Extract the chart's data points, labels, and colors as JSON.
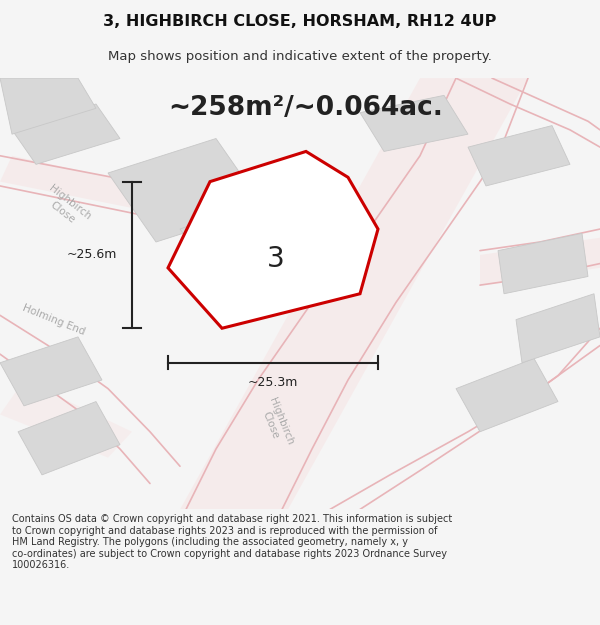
{
  "title_line1": "3, HIGHBIRCH CLOSE, HORSHAM, RH12 4UP",
  "title_line2": "Map shows position and indicative extent of the property.",
  "area_text": "~258m²/~0.064ac.",
  "label_number": "3",
  "dim_vertical": "~25.6m",
  "dim_horizontal": "~25.3m",
  "footer_text": "Contains OS data © Crown copyright and database right 2021. This information is subject\nto Crown copyright and database rights 2023 and is reproduced with the permission of\nHM Land Registry. The polygons (including the associated geometry, namely x, y\nco-ordinates) are subject to Crown copyright and database rights 2023 Ordnance Survey\n100026316.",
  "bg_color": "#f5f5f5",
  "map_bg": "#efefef",
  "road_color": "#e8b4b8",
  "road_fill": "#f5eaea",
  "building_color": "#d8d8d8",
  "building_edge": "#c8c8c8",
  "plot_fill": "#ffffff",
  "plot_edge": "#cc0000",
  "street_label_color": "#aaaaaa",
  "dim_color": "#222222",
  "figsize": [
    6.0,
    6.25
  ],
  "dpi": 100
}
